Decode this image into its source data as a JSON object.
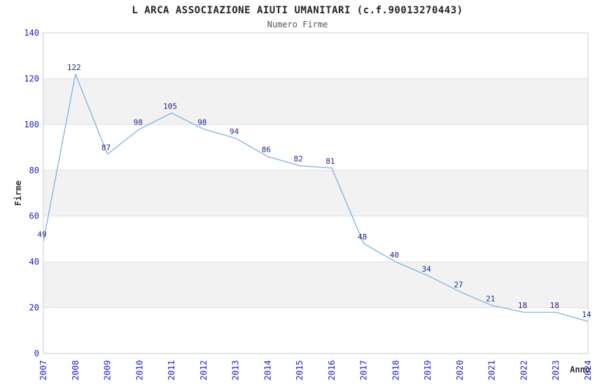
{
  "chart_data": {
    "type": "line",
    "title": "L ARCA ASSOCIAZIONE AIUTI UMANITARI (c.f.90013270443)",
    "subtitle": "Numero Firme",
    "xlabel": "Anno",
    "ylabel": "Firme",
    "categories": [
      "2007",
      "2008",
      "2009",
      "2010",
      "2011",
      "2012",
      "2013",
      "2014",
      "2015",
      "2016",
      "2017",
      "2018",
      "2019",
      "2020",
      "2021",
      "2022",
      "2023",
      "2024"
    ],
    "series": [
      {
        "name": "Numero Firme",
        "values": [
          49,
          122,
          87,
          98,
          105,
          98,
          94,
          86,
          82,
          81,
          48,
          40,
          34,
          27,
          21,
          18,
          18,
          14
        ]
      }
    ],
    "ylim": [
      0,
      140
    ],
    "ytick_step": 20,
    "grid": true,
    "legend": "none",
    "band_ranges": [
      [
        20,
        40
      ],
      [
        60,
        80
      ],
      [
        100,
        120
      ]
    ],
    "colors": {
      "line": "#7db1e4",
      "point_label": "#26268f",
      "tick_label": "#1c1cd6",
      "title": "#222222",
      "subtitle": "#555555",
      "axis_label": "#333333",
      "band": "#f2f2f2",
      "gridline": "#dfdfdf",
      "border": "#cccccc",
      "background": "#ffffff"
    }
  }
}
